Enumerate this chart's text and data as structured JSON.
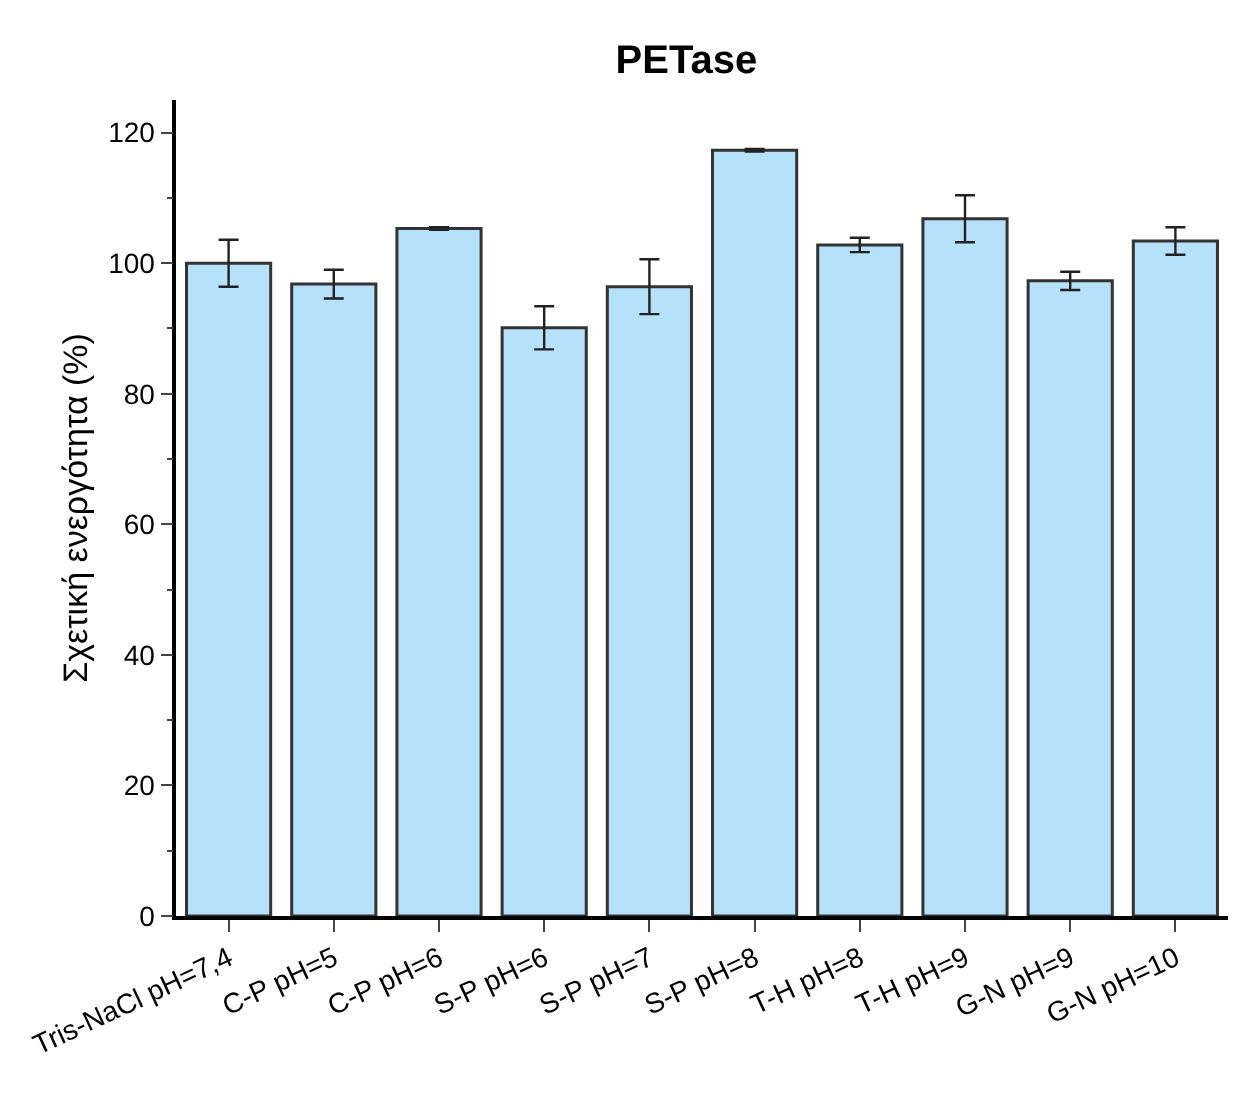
{
  "chart_data": {
    "type": "bar",
    "title": "PETase",
    "ylabel": "Σχετική ενεργότητα (%)",
    "categories": [
      "Tris-NaCl pH=7,4",
      "C-P pH=5",
      "C-P pH=6",
      "S-P pH=6",
      "S-P pH=7",
      "S-P pH=8",
      "T-H pH=8",
      "T-H pH=9",
      "G-N pH=9",
      "G-N pH=10"
    ],
    "values": [
      100,
      96.8,
      105.3,
      90.1,
      96.4,
      117.3,
      102.8,
      106.8,
      97.3,
      103.4
    ],
    "errors": [
      3.6,
      2.2,
      0.2,
      3.3,
      4.2,
      0.2,
      1.1,
      3.6,
      1.4,
      2.1
    ],
    "color": "#b6e1fa",
    "ylim": [
      0,
      125
    ],
    "yticks": [
      0,
      20,
      40,
      60,
      80,
      100,
      120
    ],
    "grid": false,
    "legend": false
  }
}
